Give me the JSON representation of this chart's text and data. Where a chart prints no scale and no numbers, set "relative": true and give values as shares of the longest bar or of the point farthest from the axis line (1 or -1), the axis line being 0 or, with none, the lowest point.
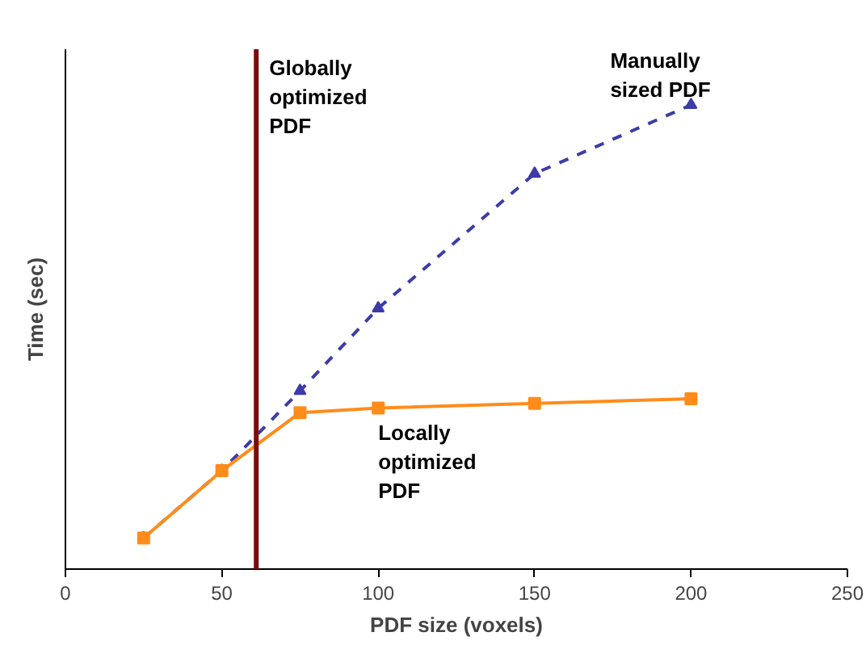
{
  "chart_data": {
    "type": "line",
    "xlabel": "PDF size (voxels)",
    "ylabel": "Time (sec)",
    "relative": true,
    "xlim": [
      0,
      250
    ],
    "xticks": [
      0,
      50,
      100,
      150,
      200,
      250
    ],
    "tick_labels": "x",
    "grid": false,
    "x": [
      25,
      50,
      75,
      100,
      150,
      200
    ],
    "series": [
      {
        "name": "Manually sized PDF",
        "color": "#3c3ca8",
        "line_style": "dashed",
        "marker": "triangle",
        "values": [
          0.067,
          0.212,
          0.384,
          0.562,
          0.852,
          1
        ]
      },
      {
        "name": "Locally optimized PDF",
        "color": "#ff8c1a",
        "line_style": "solid",
        "marker": "square",
        "values": [
          0.067,
          0.212,
          0.337,
          0.347,
          0.357,
          0.367
        ]
      }
    ],
    "ref_lines": [
      {
        "axis": "x",
        "value": 61,
        "label": "Globally optimized PDF",
        "color": "#7b0c0c",
        "line_style": "solid"
      }
    ]
  }
}
